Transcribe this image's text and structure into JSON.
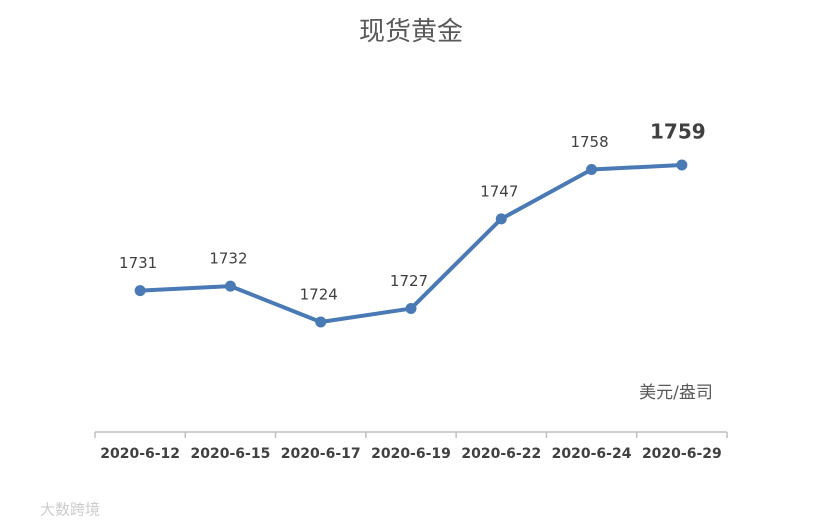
{
  "chart_data": {
    "type": "line",
    "title": "现货黄金",
    "categories": [
      "2020-6-12",
      "2020-6-15",
      "2020-6-17",
      "2020-6-19",
      "2020-6-22",
      "2020-6-24",
      "2020-6-29"
    ],
    "values": [
      1731,
      1732,
      1724,
      1727,
      1747,
      1758,
      1759
    ],
    "color": "#4a7ab5",
    "annotation": "美元/盎司",
    "watermark": "大数跨境"
  }
}
